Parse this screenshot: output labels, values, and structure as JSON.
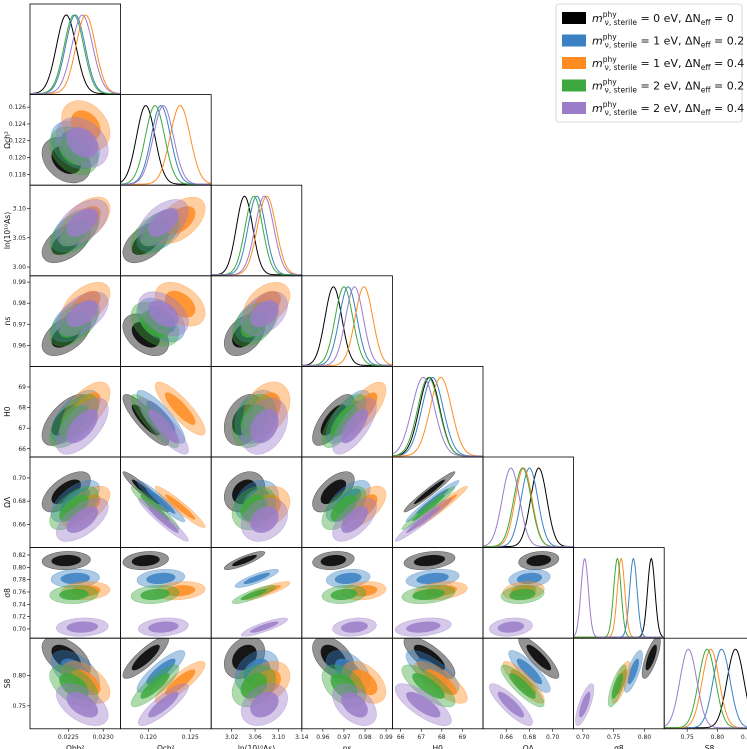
{
  "chart_data": {
    "type": "triangle-corner",
    "title": "",
    "parameters": [
      {
        "id": "ombh2",
        "label": "Ωbh²",
        "range": [
          0.02195,
          0.02325
        ],
        "ticks": [
          0.0225,
          0.023
        ],
        "tick_labels": [
          "0.0225",
          "0.0230"
        ]
      },
      {
        "id": "omch2",
        "label": "Ωch²",
        "range": [
          0.1167,
          0.1275
        ],
        "ticks": [
          0.118,
          0.12,
          0.122,
          0.124,
          0.126
        ],
        "tick_labels": [
          "0.118",
          "0.120",
          "0.122",
          "0.124",
          "0.126"
        ],
        "x_ticks": [
          0.12,
          0.125
        ],
        "x_tick_labels": [
          "0.120",
          "0.125"
        ]
      },
      {
        "id": "logA",
        "label": "ln(10¹⁰As)",
        "range": [
          2.985,
          3.14
        ],
        "ticks": [
          3.0,
          3.05,
          3.1
        ],
        "tick_labels": [
          "3.00",
          "3.05",
          "3.10"
        ],
        "x_ticks": [
          3.02,
          3.06,
          3.1,
          3.14
        ],
        "x_tick_labels": [
          "3.02",
          "3.06",
          "3.10",
          "3.14"
        ]
      },
      {
        "id": "ns",
        "label": "ns",
        "range": [
          0.95,
          0.993
        ],
        "ticks": [
          0.96,
          0.97,
          0.98,
          0.99
        ],
        "tick_labels": [
          "0.96",
          "0.97",
          "0.98",
          "0.99"
        ]
      },
      {
        "id": "H0",
        "label": "H0",
        "range": [
          65.6,
          70.0
        ],
        "ticks": [
          66,
          67,
          68,
          69
        ],
        "tick_labels": [
          "66",
          "67",
          "68",
          "69"
        ]
      },
      {
        "id": "OmegaL",
        "label": "ΩΛ",
        "range": [
          0.64,
          0.718
        ],
        "ticks": [
          0.66,
          0.68,
          0.7
        ],
        "tick_labels": [
          "0.66",
          "0.68",
          "0.70"
        ]
      },
      {
        "id": "sigma8",
        "label": "σ8",
        "range": [
          0.685,
          0.832
        ],
        "ticks": [
          0.7,
          0.72,
          0.74,
          0.76,
          0.78,
          0.8,
          0.82
        ],
        "tick_labels": [
          "0.70",
          "0.72",
          "0.74",
          "0.76",
          "0.78",
          "0.80",
          "0.82"
        ],
        "x_ticks": [
          0.7,
          0.75,
          0.8
        ],
        "x_tick_labels": [
          "0.70",
          "0.75",
          "0.80"
        ]
      },
      {
        "id": "S8",
        "label": "S8",
        "range": [
          0.712,
          0.862
        ],
        "ticks": [
          0.75,
          0.8
        ],
        "tick_labels": [
          "0.75",
          "0.80"
        ],
        "x_ticks": [
          0.75,
          0.8,
          0.85
        ],
        "x_tick_labels": [
          "0.75",
          "0.80",
          "0.85"
        ]
      }
    ],
    "series": [
      {
        "name": "m_ν,sterile^phy = 0 eV, ΔNeff = 0",
        "legend_main": "m",
        "legend_sup": "phy",
        "legend_sub": "ν, sterile",
        "legend_rest": " = 0 eV, ΔN",
        "legend_sub2": "eff",
        "legend_tail": " = 0",
        "color": "#000000",
        "means": [
          0.02247,
          0.1197,
          3.042,
          0.965,
          67.4,
          0.688,
          0.811,
          0.83
        ],
        "sigmas": [
          0.00014,
          0.0011,
          0.014,
          0.004,
          0.5,
          0.007,
          0.006,
          0.014
        ]
      },
      {
        "name": "m_ν,sterile^phy = 1 eV, ΔNeff = 0.2",
        "legend_main": "m",
        "legend_sup": "phy",
        "legend_sub": "ν, sterile",
        "legend_rest": " = 1 eV, ΔN",
        "legend_sub2": "eff",
        "legend_tail": " = 0.2",
        "color": "#3a80c2",
        "means": [
          0.0226,
          0.1215,
          3.063,
          0.972,
          67.55,
          0.68,
          0.782,
          0.807
        ],
        "sigmas": [
          0.00014,
          0.00115,
          0.015,
          0.0042,
          0.52,
          0.0072,
          0.006,
          0.014
        ]
      },
      {
        "name": "m_ν,sterile^phy = 1 eV, ΔNeff = 0.4",
        "legend_main": "m",
        "legend_sup": "phy",
        "legend_sub": "ν, sterile",
        "legend_rest": " = 1 eV, ΔN",
        "legend_sub2": "eff",
        "legend_tail": " = 0.4",
        "color": "#ff8c21",
        "means": [
          0.02275,
          0.1238,
          3.08,
          0.9795,
          67.95,
          0.675,
          0.762,
          0.789
        ],
        "sigmas": [
          0.00014,
          0.0012,
          0.016,
          0.0042,
          0.52,
          0.0072,
          0.006,
          0.014
        ]
      },
      {
        "name": "m_ν,sterile^phy = 2 eV, ΔNeff = 0.2",
        "legend_main": "m",
        "legend_sup": "phy",
        "legend_sub": "ν, sterile",
        "legend_rest": " = 2 eV, ΔN",
        "legend_sub2": "eff",
        "legend_tail": " = 0.2",
        "color": "#3da83d",
        "means": [
          0.02258,
          0.1208,
          3.058,
          0.97,
          67.35,
          0.674,
          0.756,
          0.783
        ],
        "sigmas": [
          0.00014,
          0.00115,
          0.015,
          0.0042,
          0.52,
          0.0075,
          0.006,
          0.014
        ]
      },
      {
        "name": "m_ν,sterile^phy = 2 eV, ΔNeff = 0.4",
        "legend_main": "m",
        "legend_sup": "phy",
        "legend_sub": "ν, sterile",
        "legend_rest": " = 2 eV, ΔN",
        "legend_sub2": "eff",
        "legend_tail": " = 0.4",
        "color": "#9b7cc9",
        "means": [
          0.0227,
          0.1218,
          3.076,
          0.975,
          67.1,
          0.664,
          0.703,
          0.752
        ],
        "sigmas": [
          0.00015,
          0.0012,
          0.016,
          0.0042,
          0.55,
          0.0075,
          0.006,
          0.014
        ]
      }
    ],
    "correlations": {
      "0,1": -0.3,
      "0,2": 0.5,
      "0,3": 0.5,
      "0,4": 0.6,
      "0,5": 0.6,
      "0,6": 0.1,
      "0,7": -0.5,
      "1,2": 0.5,
      "1,3": -0.4,
      "1,4": -0.85,
      "1,5": -0.95,
      "1,6": 0.2,
      "1,7": 0.85,
      "2,3": 0.4,
      "2,4": 0.3,
      "2,5": 0.25,
      "2,6": 0.85,
      "2,7": 0.3,
      "3,4": 0.7,
      "3,5": 0.6,
      "3,6": 0.2,
      "3,7": -0.45,
      "4,5": 0.97,
      "4,6": 0.3,
      "4,7": -0.75,
      "5,6": 0.2,
      "5,7": -0.85,
      "6,7": 0.75
    },
    "legend_position": "top-right"
  }
}
